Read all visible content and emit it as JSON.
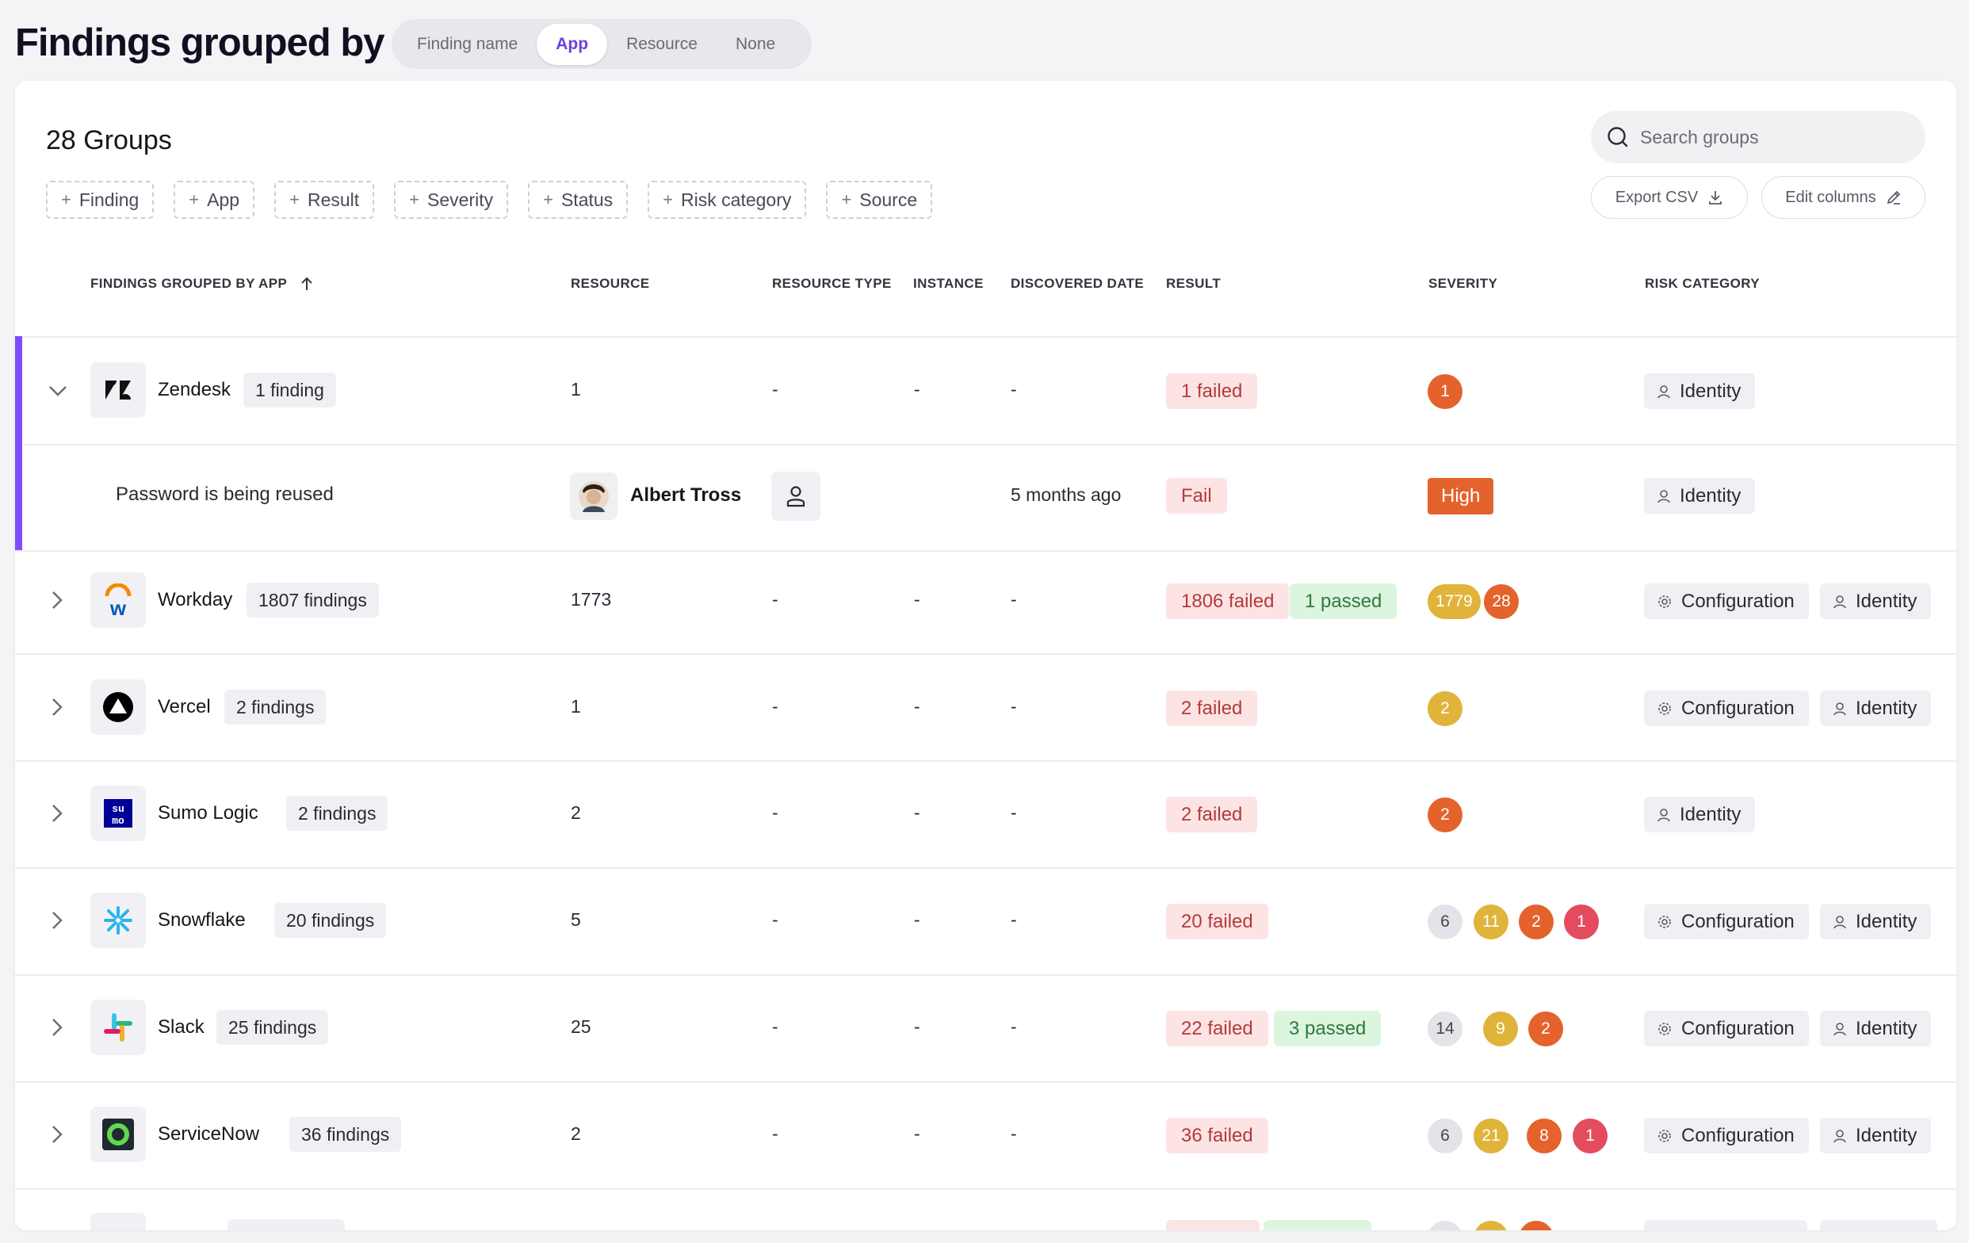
{
  "header": {
    "title": "Findings grouped by",
    "group_options": [
      "Finding name",
      "App",
      "Resource",
      "None"
    ],
    "selected_group": "App",
    "accent_color": "#6c3fe0"
  },
  "toolbar": {
    "groups_count": "28 Groups",
    "filters": [
      "Finding",
      "App",
      "Result",
      "Severity",
      "Status",
      "Risk category",
      "Source"
    ],
    "search_placeholder": "Search groups",
    "export_label": "Export CSV",
    "edit_columns_label": "Edit columns"
  },
  "table": {
    "columns": {
      "group": "FINDINGS GROUPED BY APP",
      "resource": "RESOURCE",
      "resource_type": "RESOURCE TYPE",
      "instance": "INSTANCE",
      "discovered": "DISCOVERED DATE",
      "result": "RESULT",
      "severity": "SEVERITY",
      "risk": "RISK CATEGORY"
    },
    "sort": "ascending",
    "rows": [
      {
        "app": "Zendesk",
        "icon": "zendesk-logo",
        "count": "1 finding",
        "resource": "1",
        "resource_type": "-",
        "instance": "-",
        "discovered": "-",
        "failed": "1 failed",
        "passed": "",
        "severity": [
          {
            "value": "1",
            "level": "orange"
          }
        ],
        "risk": [
          "Identity"
        ],
        "expanded": true
      },
      {
        "app": "Workday",
        "icon": "workday-logo",
        "count": "1807 findings",
        "resource": "1773",
        "resource_type": "-",
        "instance": "-",
        "discovered": "-",
        "failed": "1806 failed",
        "passed": "1 passed",
        "severity": [
          {
            "value": "1779",
            "level": "yellow"
          },
          {
            "value": "28",
            "level": "orange"
          }
        ],
        "risk": [
          "Configuration",
          "Identity"
        ]
      },
      {
        "app": "Vercel",
        "icon": "vercel-logo",
        "count": "2 findings",
        "resource": "1",
        "resource_type": "-",
        "instance": "-",
        "discovered": "-",
        "failed": "2 failed",
        "passed": "",
        "severity": [
          {
            "value": "2",
            "level": "yellow"
          }
        ],
        "risk": [
          "Configuration",
          "Identity"
        ]
      },
      {
        "app": "Sumo Logic",
        "icon": "sumo-logic-logo",
        "count": "2 findings",
        "resource": "2",
        "resource_type": "-",
        "instance": "-",
        "discovered": "-",
        "failed": "2 failed",
        "passed": "",
        "severity": [
          {
            "value": "2",
            "level": "orange"
          }
        ],
        "risk": [
          "Identity"
        ]
      },
      {
        "app": "Snowflake",
        "icon": "snowflake-logo",
        "count": "20 findings",
        "resource": "5",
        "resource_type": "-",
        "instance": "-",
        "discovered": "-",
        "failed": "20 failed",
        "passed": "",
        "severity": [
          {
            "value": "6",
            "level": "gray"
          },
          {
            "value": "11",
            "level": "yellow"
          },
          {
            "value": "2",
            "level": "orange"
          },
          {
            "value": "1",
            "level": "red"
          }
        ],
        "risk": [
          "Configuration",
          "Identity"
        ]
      },
      {
        "app": "Slack",
        "icon": "slack-logo",
        "count": "25 findings",
        "resource": "25",
        "resource_type": "-",
        "instance": "-",
        "discovered": "-",
        "failed": "22 failed",
        "passed": "3 passed",
        "severity": [
          {
            "value": "14",
            "level": "gray"
          },
          {
            "value": "9",
            "level": "yellow"
          },
          {
            "value": "2",
            "level": "orange"
          }
        ],
        "risk": [
          "Configuration",
          "Identity"
        ]
      },
      {
        "app": "ServiceNow",
        "icon": "servicenow-logo",
        "count": "36 findings",
        "resource": "2",
        "resource_type": "-",
        "instance": "-",
        "discovered": "-",
        "failed": "36 failed",
        "passed": "",
        "severity": [
          {
            "value": "6",
            "level": "gray"
          },
          {
            "value": "21",
            "level": "yellow"
          },
          {
            "value": "8",
            "level": "orange"
          },
          {
            "value": "1",
            "level": "red"
          }
        ],
        "risk": [
          "Configuration",
          "Identity"
        ]
      }
    ],
    "expanded_finding": {
      "name": "Password is being reused",
      "resource": "Albert Tross",
      "discovered": "5 months ago",
      "result": "Fail",
      "severity": "High",
      "risk": "Identity"
    }
  }
}
